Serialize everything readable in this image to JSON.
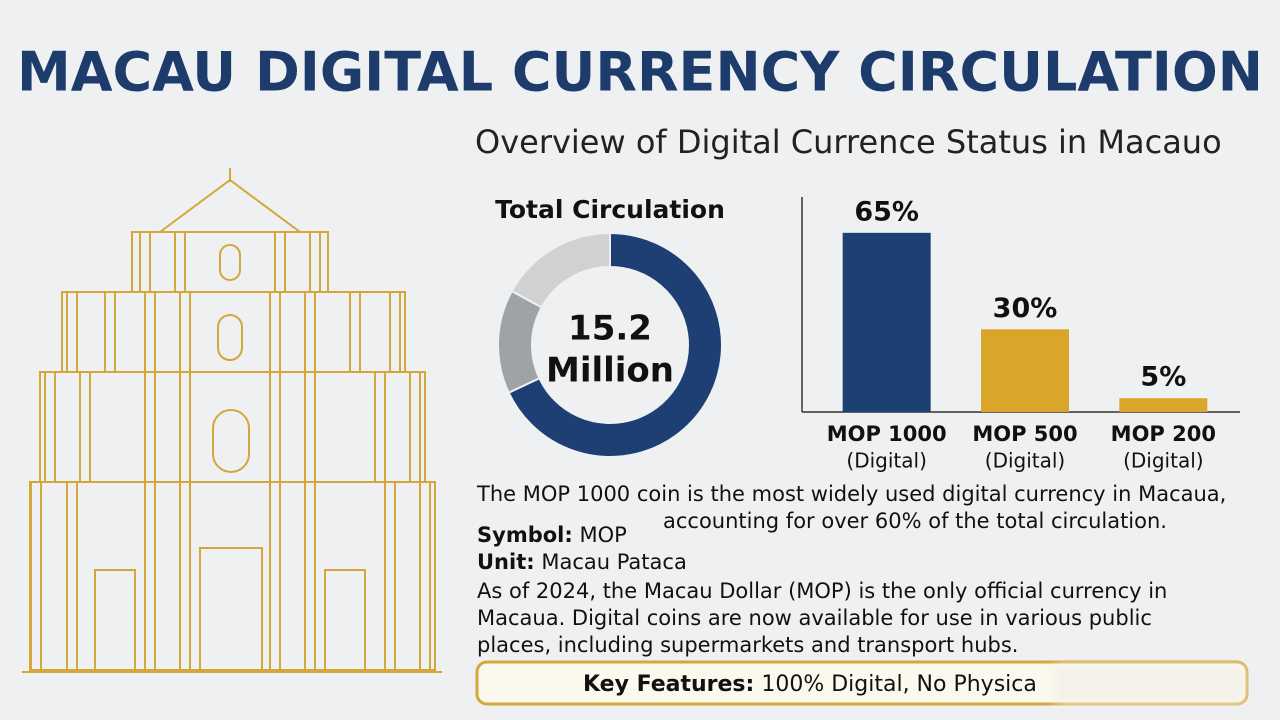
{
  "header": {
    "title": "MACAU DIGITAL CURRENCY CIRCULATION",
    "subtitle": "Overview of Digital Currence Status in Macauo"
  },
  "chart_data": [
    {
      "type": "pie",
      "title": "Total Circulation",
      "center_label": [
        "15.2",
        "Million"
      ],
      "values": [
        68,
        15,
        17
      ],
      "colors": [
        "#1e3f73",
        "#9ea3a8",
        "#cfd1d3"
      ]
    },
    {
      "type": "bar",
      "categories": [
        "MOP 1000",
        "MOP 500",
        "MOP 200"
      ],
      "category_sublabels": [
        "(Digital)",
        "(Digital)",
        "(Digital)"
      ],
      "values": [
        65,
        30,
        5
      ],
      "value_labels": [
        "65%",
        "30%",
        "5%"
      ],
      "colors": [
        "#1e3f73",
        "#d9a52a",
        "#d9a52a"
      ],
      "ylim": [
        0,
        78
      ]
    }
  ],
  "notes": {
    "caption": [
      "The MOP 1000 coin is the most widely used digital currency in Macaua,",
      "accounting for over 60% of the total circulation."
    ],
    "symbol": {
      "label": "Symbol:",
      "value": "MOP"
    },
    "unit": {
      "label": "Unit:",
      "value": "Macau Pataca"
    },
    "description": [
      "As of 2024, the Macau Dollar (MOP) is the only official currency in",
      "Macaua. Digital coins are now available for use in various public",
      "places, including supermarkets and transport hubs."
    ],
    "key_features": {
      "label": "Key Features:",
      "value": "100% Digital, No Physica"
    }
  }
}
